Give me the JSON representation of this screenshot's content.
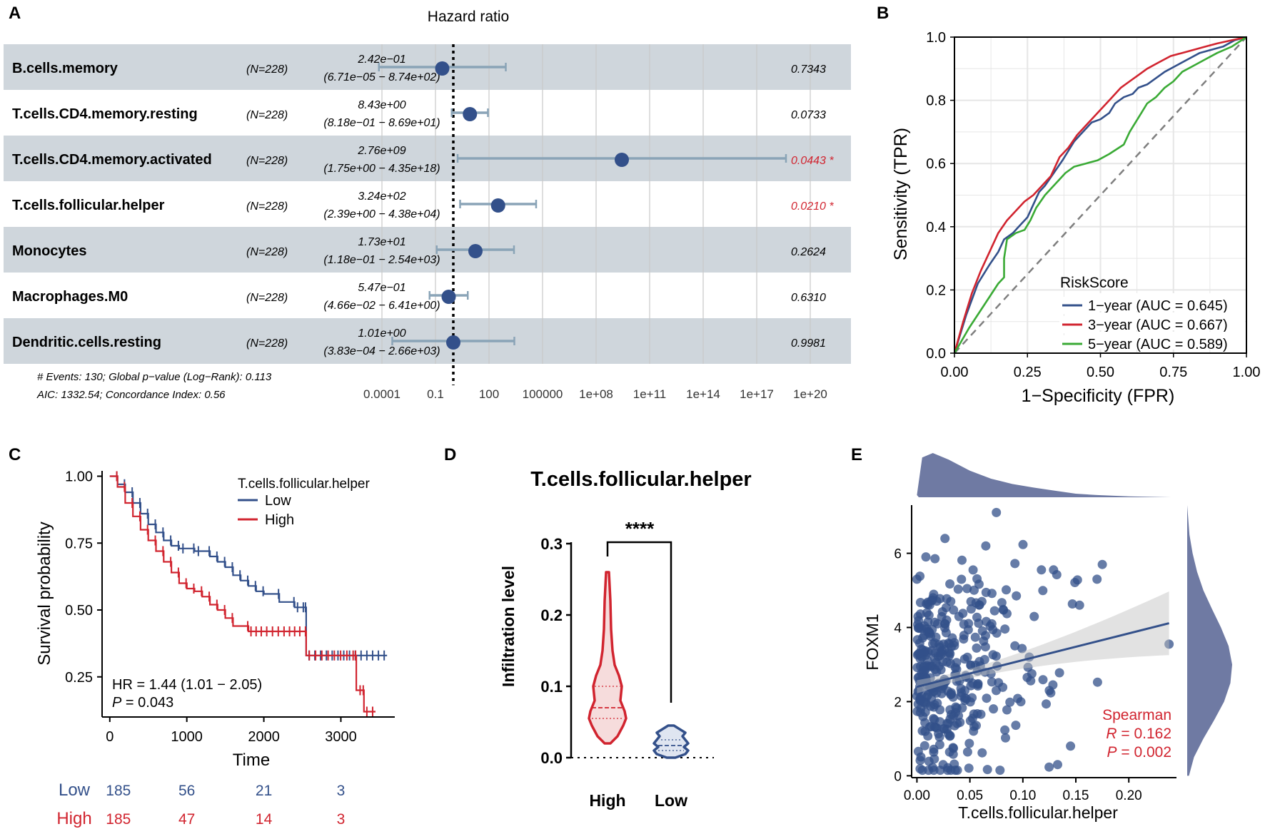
{
  "colors": {
    "navy": "#33508a",
    "red": "#d1242f",
    "green": "#3aaa35",
    "rowBand": "#cfd6dc",
    "ciLine": "#8aa4b7",
    "grid": "#e6e6e6",
    "slate": "#6f7aa3",
    "gray": "#7f7f7f"
  },
  "panels": {
    "A": "A",
    "B": "B",
    "C": "C",
    "D": "D",
    "E": "E"
  },
  "chart_data": [
    {
      "id": "A",
      "type": "forest",
      "title": "Hazard ratio",
      "xscale": "log10",
      "xlim_log10": [
        -4.2,
        21
      ],
      "reference_log10": 0,
      "ticks": [
        "0.0001",
        "0.1",
        "100",
        "100000",
        "1e+08",
        "1e+11",
        "1e+14",
        "1e+17",
        "1e+20"
      ],
      "tick_log10": [
        -4,
        -1,
        2,
        5,
        8,
        11,
        14,
        17,
        20
      ],
      "rows": [
        {
          "name": "B.cells.memory",
          "n": "(N=228)",
          "hr": "2.42e−01",
          "ci": "(6.71e−05 − 8.74e+02)",
          "p": "0.7343",
          "sig": false,
          "log_hr": -0.62,
          "log_lo": -4.17,
          "log_hi": 2.94
        },
        {
          "name": "T.cells.CD4.memory.resting",
          "n": "(N=228)",
          "hr": "8.43e+00",
          "ci": "(8.18e−01 − 8.69e+01)",
          "p": "0.0733",
          "sig": false,
          "log_hr": 0.93,
          "log_lo": -0.09,
          "log_hi": 1.94
        },
        {
          "name": "T.cells.CD4.memory.activated",
          "n": "(N=228)",
          "hr": "2.76e+09",
          "ci": "(1.75e+00 − 4.35e+18)",
          "p": "0.0443 *",
          "sig": true,
          "log_hr": 9.44,
          "log_lo": 0.24,
          "log_hi": 18.64
        },
        {
          "name": "T.cells.follicular.helper",
          "n": "(N=228)",
          "hr": "3.24e+02",
          "ci": "(2.39e+00 − 4.38e+04)",
          "p": "0.0210 *",
          "sig": true,
          "log_hr": 2.51,
          "log_lo": 0.38,
          "log_hi": 4.64
        },
        {
          "name": "Monocytes",
          "n": "(N=228)",
          "hr": "1.73e+01",
          "ci": "(1.18e−01 − 2.54e+03)",
          "p": "0.2624",
          "sig": false,
          "log_hr": 1.24,
          "log_lo": -0.93,
          "log_hi": 3.4
        },
        {
          "name": "Macrophages.M0",
          "n": "(N=228)",
          "hr": "5.47e−01",
          "ci": "(4.66e−02 − 6.41e+00)",
          "p": "0.6310",
          "sig": false,
          "log_hr": -0.26,
          "log_lo": -1.33,
          "log_hi": 0.81
        },
        {
          "name": "Dendritic.cells.resting",
          "n": "(N=228)",
          "hr": "1.01e+00",
          "ci": "(3.83e−04 − 2.66e+03)",
          "p": "0.9981",
          "sig": false,
          "log_hr": 0.0,
          "log_lo": -3.42,
          "log_hi": 3.42
        }
      ],
      "footnote1": "# Events: 130; Global p−value (Log−Rank): 0.113",
      "footnote2": "AIC: 1332.54; Concordance Index: 0.56"
    },
    {
      "id": "B",
      "type": "line",
      "subtype": "roc",
      "xlabel": "1−Specificity (FPR)",
      "ylabel": "Sensitivity (TPR)",
      "xlim": [
        0,
        1
      ],
      "ylim": [
        0,
        1
      ],
      "xticks": [
        "0.00",
        "0.25",
        "0.50",
        "0.75",
        "1.00"
      ],
      "yticks": [
        "0.0",
        "0.2",
        "0.4",
        "0.6",
        "0.8",
        "1.0"
      ],
      "legend_title": "RiskScore",
      "series": [
        {
          "name": "1−year (AUC = 0.645)",
          "color": "#33508a",
          "points": [
            [
              0,
              0
            ],
            [
              0.04,
              0.12
            ],
            [
              0.08,
              0.22
            ],
            [
              0.12,
              0.28
            ],
            [
              0.15,
              0.32
            ],
            [
              0.17,
              0.36
            ],
            [
              0.2,
              0.38
            ],
            [
              0.22,
              0.4
            ],
            [
              0.25,
              0.43
            ],
            [
              0.27,
              0.47
            ],
            [
              0.29,
              0.51
            ],
            [
              0.31,
              0.53
            ],
            [
              0.34,
              0.57
            ],
            [
              0.37,
              0.61
            ],
            [
              0.39,
              0.64
            ],
            [
              0.41,
              0.67
            ],
            [
              0.43,
              0.69
            ],
            [
              0.45,
              0.71
            ],
            [
              0.47,
              0.73
            ],
            [
              0.5,
              0.74
            ],
            [
              0.53,
              0.76
            ],
            [
              0.55,
              0.79
            ],
            [
              0.58,
              0.81
            ],
            [
              0.61,
              0.82
            ],
            [
              0.63,
              0.84
            ],
            [
              0.66,
              0.85
            ],
            [
              0.69,
              0.87
            ],
            [
              0.72,
              0.89
            ],
            [
              0.76,
              0.91
            ],
            [
              0.8,
              0.93
            ],
            [
              0.84,
              0.95
            ],
            [
              0.88,
              0.96
            ],
            [
              0.92,
              0.97
            ],
            [
              0.96,
              0.99
            ],
            [
              1,
              1
            ]
          ]
        },
        {
          "name": "3−year (AUC = 0.667)",
          "color": "#d1242f",
          "points": [
            [
              0,
              0
            ],
            [
              0.03,
              0.1
            ],
            [
              0.06,
              0.19
            ],
            [
              0.09,
              0.26
            ],
            [
              0.12,
              0.32
            ],
            [
              0.15,
              0.38
            ],
            [
              0.18,
              0.42
            ],
            [
              0.21,
              0.45
            ],
            [
              0.24,
              0.48
            ],
            [
              0.27,
              0.5
            ],
            [
              0.3,
              0.53
            ],
            [
              0.33,
              0.56
            ],
            [
              0.36,
              0.62
            ],
            [
              0.39,
              0.65
            ],
            [
              0.42,
              0.69
            ],
            [
              0.45,
              0.72
            ],
            [
              0.48,
              0.75
            ],
            [
              0.51,
              0.78
            ],
            [
              0.54,
              0.81
            ],
            [
              0.57,
              0.84
            ],
            [
              0.6,
              0.86
            ],
            [
              0.63,
              0.88
            ],
            [
              0.66,
              0.9
            ],
            [
              0.7,
              0.92
            ],
            [
              0.74,
              0.94
            ],
            [
              0.78,
              0.95
            ],
            [
              0.82,
              0.96
            ],
            [
              0.86,
              0.97
            ],
            [
              0.9,
              0.98
            ],
            [
              0.95,
              0.99
            ],
            [
              1,
              1
            ]
          ]
        },
        {
          "name": "5−year (AUC = 0.589)",
          "color": "#3aaa35",
          "points": [
            [
              0,
              0
            ],
            [
              0.05,
              0.08
            ],
            [
              0.1,
              0.15
            ],
            [
              0.15,
              0.22
            ],
            [
              0.17,
              0.24
            ],
            [
              0.17,
              0.3
            ],
            [
              0.18,
              0.36
            ],
            [
              0.21,
              0.38
            ],
            [
              0.24,
              0.39
            ],
            [
              0.26,
              0.42
            ],
            [
              0.28,
              0.46
            ],
            [
              0.31,
              0.5
            ],
            [
              0.35,
              0.54
            ],
            [
              0.38,
              0.57
            ],
            [
              0.41,
              0.59
            ],
            [
              0.45,
              0.6
            ],
            [
              0.49,
              0.61
            ],
            [
              0.53,
              0.63
            ],
            [
              0.58,
              0.66
            ],
            [
              0.6,
              0.7
            ],
            [
              0.62,
              0.73
            ],
            [
              0.64,
              0.76
            ],
            [
              0.66,
              0.79
            ],
            [
              0.69,
              0.81
            ],
            [
              0.72,
              0.84
            ],
            [
              0.75,
              0.86
            ],
            [
              0.78,
              0.89
            ],
            [
              0.82,
              0.91
            ],
            [
              0.86,
              0.93
            ],
            [
              0.9,
              0.95
            ],
            [
              0.95,
              0.97
            ],
            [
              1,
              1
            ]
          ]
        }
      ]
    },
    {
      "id": "C",
      "type": "line",
      "subtype": "kaplan-meier",
      "xlabel": "Time",
      "ylabel": "Survival probability",
      "xlim": [
        -100,
        3700
      ],
      "ylim": [
        0.1,
        1.02
      ],
      "xticks": [
        0,
        1000,
        2000,
        3000
      ],
      "yticks": [
        "1.00",
        "0.75",
        "0.50",
        "0.25"
      ],
      "ytick_values": [
        1.0,
        0.75,
        0.5,
        0.25
      ],
      "legend_title": "T.cells.follicular.helper",
      "hr_text": "HR = 1.44 (1.01 − 2.05)",
      "p_label": "P",
      "p_text": " = 0.043",
      "series": [
        {
          "name": "Low",
          "color": "#33508a",
          "points": [
            [
              0,
              1.0
            ],
            [
              100,
              0.97
            ],
            [
              200,
              0.94
            ],
            [
              300,
              0.9
            ],
            [
              400,
              0.86
            ],
            [
              500,
              0.82
            ],
            [
              600,
              0.79
            ],
            [
              700,
              0.76
            ],
            [
              800,
              0.74
            ],
            [
              900,
              0.73
            ],
            [
              1000,
              0.73
            ],
            [
              1100,
              0.72
            ],
            [
              1200,
              0.72
            ],
            [
              1300,
              0.7
            ],
            [
              1400,
              0.68
            ],
            [
              1500,
              0.66
            ],
            [
              1600,
              0.63
            ],
            [
              1700,
              0.61
            ],
            [
              1800,
              0.59
            ],
            [
              1900,
              0.57
            ],
            [
              2000,
              0.56
            ],
            [
              2200,
              0.53
            ],
            [
              2400,
              0.51
            ],
            [
              2550,
              0.51
            ],
            [
              2550,
              0.33
            ],
            [
              3000,
              0.33
            ],
            [
              3600,
              0.33
            ]
          ]
        },
        {
          "name": "High",
          "color": "#d1242f",
          "points": [
            [
              0,
              1.0
            ],
            [
              100,
              0.96
            ],
            [
              200,
              0.9
            ],
            [
              300,
              0.85
            ],
            [
              400,
              0.8
            ],
            [
              500,
              0.76
            ],
            [
              600,
              0.72
            ],
            [
              700,
              0.68
            ],
            [
              800,
              0.64
            ],
            [
              900,
              0.6
            ],
            [
              1000,
              0.58
            ],
            [
              1100,
              0.57
            ],
            [
              1200,
              0.55
            ],
            [
              1300,
              0.52
            ],
            [
              1400,
              0.5
            ],
            [
              1500,
              0.47
            ],
            [
              1600,
              0.44
            ],
            [
              1800,
              0.42
            ],
            [
              2000,
              0.42
            ],
            [
              2300,
              0.42
            ],
            [
              2500,
              0.42
            ],
            [
              2550,
              0.33
            ],
            [
              3200,
              0.33
            ],
            [
              3200,
              0.2
            ],
            [
              3300,
              0.2
            ],
            [
              3300,
              0.12
            ],
            [
              3450,
              0.12
            ]
          ]
        }
      ],
      "risk_table": {
        "times": [
          0,
          1000,
          2000,
          3000
        ],
        "rows": [
          {
            "label": "Low",
            "values": [
              "185",
              "56",
              "21",
              "3"
            ]
          },
          {
            "label": "High",
            "values": [
              "185",
              "47",
              "14",
              "3"
            ]
          }
        ]
      }
    },
    {
      "id": "D",
      "type": "violin",
      "title": "T.cells.follicular.helper",
      "ylabel": "Infiltration level",
      "categories": [
        "High",
        "Low"
      ],
      "ylim": [
        0,
        0.3
      ],
      "yticks": [
        "0.0",
        "0.1",
        "0.2",
        "0.3"
      ],
      "significance": "****",
      "series": [
        {
          "name": "High",
          "median": 0.07,
          "q1": 0.055,
          "q3": 0.1,
          "min": 0.02,
          "max": 0.26
        },
        {
          "name": "Low",
          "median": 0.017,
          "q1": 0.01,
          "q3": 0.025,
          "min": 0.0,
          "max": 0.045
        }
      ]
    },
    {
      "id": "E",
      "type": "scatter",
      "xlabel": "T.cells.follicular.helper",
      "ylabel": "FOXM1",
      "xlim": [
        -0.005,
        0.245
      ],
      "ylim": [
        -0.05,
        7.3
      ],
      "xticks": [
        "0.00",
        "0.05",
        "0.10",
        "0.15",
        "0.20"
      ],
      "yticks": [
        "0",
        "2",
        "4",
        "6"
      ],
      "stat_label": "Spearman",
      "r_label": "R",
      "r_text": " = 0.162",
      "p_label": "P",
      "p_text": " = 0.002",
      "n_points": 374,
      "fit": {
        "intercept": 2.4,
        "slope": 7.2
      },
      "sample_points": [
        [
          0.238,
          3.55
        ],
        [
          0.075,
          7.1
        ],
        [
          0.065,
          6.2
        ],
        [
          0.175,
          5.7
        ],
        [
          0.145,
          0.8
        ],
        [
          0.17,
          5.3
        ],
        [
          0.125,
          2.3
        ],
        [
          0.0,
          5.3
        ]
      ]
    }
  ]
}
